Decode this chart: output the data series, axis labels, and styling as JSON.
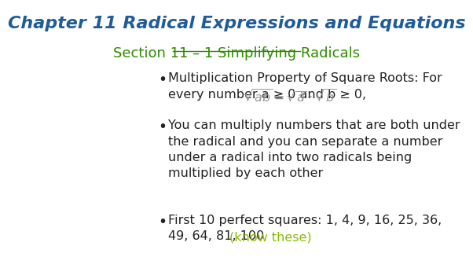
{
  "title": "Chapter 11 Radical Expressions and Equations",
  "title_color": "#1F5C99",
  "title_fontsize": 16,
  "subtitle": "Section 11 – 1 Simplifying Radicals",
  "subtitle_color": "#2E8B00",
  "subtitle_fontsize": 13,
  "background_color": "#ffffff",
  "body_color": "#222222",
  "green_color": "#88BB00",
  "body_fontsize": 11.5
}
